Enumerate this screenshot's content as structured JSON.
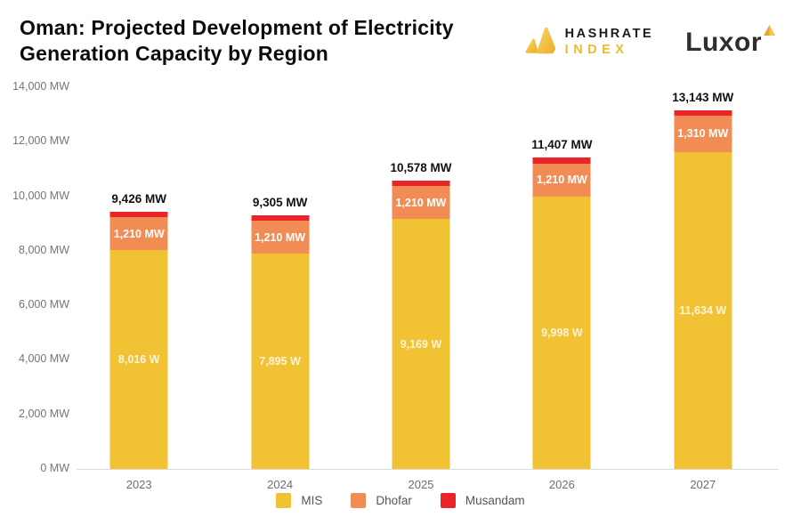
{
  "header": {
    "title_line1": "Oman: Projected Development of Electricity",
    "title_line2": "Generation Capacity by Region",
    "hashrate_logo": {
      "line1": "HASHRATE",
      "line2": "INDEX",
      "accent_color": "#f2b92e"
    },
    "luxor_logo": {
      "text": "Luxor"
    }
  },
  "chart_data": {
    "type": "bar",
    "stacked": true,
    "title": "Oman: Projected Development of Electricity Generation Capacity by Region",
    "categories": [
      "2023",
      "2024",
      "2025",
      "2026",
      "2027"
    ],
    "series": [
      {
        "name": "MIS",
        "color": "#f1c233",
        "values": [
          8016,
          7895,
          9169,
          9998,
          11634
        ],
        "labels": [
          "8,016 W",
          "7,895 W",
          "9,169 W",
          "9,998 W",
          "11,634 W"
        ],
        "label_color": "rgba(255,255,255,0.82)"
      },
      {
        "name": "Dhofar",
        "color": "#f18c55",
        "values": [
          1210,
          1210,
          1210,
          1210,
          1310
        ],
        "labels": [
          "1,210 MW",
          "1,210 MW",
          "1,210 MW",
          "1,210 MW",
          "1,310 MW"
        ],
        "label_color": "#ffffff"
      },
      {
        "name": "Musandam",
        "color": "#eb2428",
        "values": [
          200,
          200,
          199,
          199,
          199
        ],
        "labels": [
          "",
          "",
          "",
          "",
          ""
        ],
        "label_color": "#ffffff"
      }
    ],
    "totals": [
      9426,
      9305,
      10578,
      11407,
      13143
    ],
    "total_labels": [
      "9,426 MW",
      "9,305 MW",
      "10,578 MW",
      "11,407 MW",
      "13,143 MW"
    ],
    "y_ticks": [
      "0 MW",
      "2,000 MW",
      "4,000 MW",
      "6,000 MW",
      "8,000 MW",
      "10,000 MW",
      "12,000 MW",
      "14,000 MW"
    ],
    "y_tick_values": [
      0,
      2000,
      4000,
      6000,
      8000,
      10000,
      12000,
      14000
    ],
    "ylim": [
      0,
      14000
    ],
    "xlabel": "",
    "ylabel": "",
    "grid": false,
    "legend_position": "bottom",
    "legend": [
      {
        "label": "MIS",
        "color": "#f1c233"
      },
      {
        "label": "Dhofar",
        "color": "#f18c55"
      },
      {
        "label": "Musandam",
        "color": "#eb2428"
      }
    ]
  }
}
